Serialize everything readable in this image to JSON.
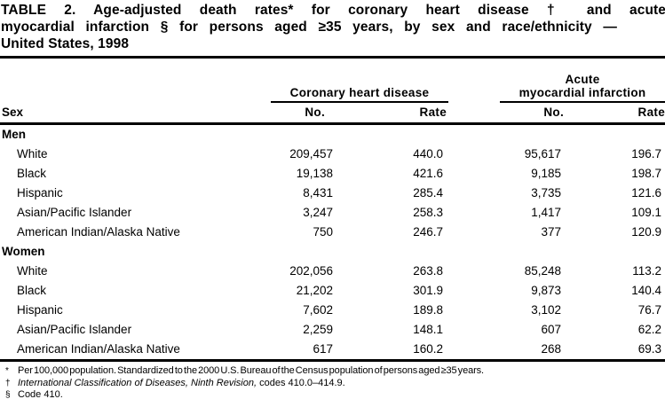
{
  "title": {
    "line1": "TABLE 2. Age-adjusted death rates* for coronary heart disease † and acute",
    "line2": "myocardial infarction § for persons aged ≥35 years, by sex and race/ethnicity —",
    "line3": "United States, 1998"
  },
  "table": {
    "sex_header": "Sex",
    "group_chd": "Coronary heart disease",
    "group_ami_line1": "Acute",
    "group_ami_line2": "myocardial infarction",
    "col_no": "No.",
    "col_rate": "Rate",
    "sections": [
      {
        "label": "Men",
        "rows": [
          {
            "label": "White",
            "chd_no": "209,457",
            "chd_rate": "440.0",
            "ami_no": "95,617",
            "ami_rate": "196.7"
          },
          {
            "label": "Black",
            "chd_no": "19,138",
            "chd_rate": "421.6",
            "ami_no": "9,185",
            "ami_rate": "198.7"
          },
          {
            "label": "Hispanic",
            "chd_no": "8,431",
            "chd_rate": "285.4",
            "ami_no": "3,735",
            "ami_rate": "121.6"
          },
          {
            "label": "Asian/Pacific Islander",
            "chd_no": "3,247",
            "chd_rate": "258.3",
            "ami_no": "1,417",
            "ami_rate": "109.1"
          },
          {
            "label": "American Indian/Alaska Native",
            "chd_no": "750",
            "chd_rate": "246.7",
            "ami_no": "377",
            "ami_rate": "120.9"
          }
        ]
      },
      {
        "label": "Women",
        "rows": [
          {
            "label": "White",
            "chd_no": "202,056",
            "chd_rate": "263.8",
            "ami_no": "85,248",
            "ami_rate": "113.2"
          },
          {
            "label": "Black",
            "chd_no": "21,202",
            "chd_rate": "301.9",
            "ami_no": "9,873",
            "ami_rate": "140.4"
          },
          {
            "label": "Hispanic",
            "chd_no": "7,602",
            "chd_rate": "189.8",
            "ami_no": "3,102",
            "ami_rate": "76.7"
          },
          {
            "label": "Asian/Pacific Islander",
            "chd_no": "2,259",
            "chd_rate": "148.1",
            "ami_no": "607",
            "ami_rate": "62.2"
          },
          {
            "label": "American Indian/Alaska Native",
            "chd_no": "617",
            "chd_rate": "160.2",
            "ami_no": "268",
            "ami_rate": "69.3"
          }
        ]
      }
    ]
  },
  "footnotes": [
    {
      "symbol": "*",
      "text": "Per 100,000 population. Standardized to the 2000 U.S. Bureau of the Census population of persons aged ≥35 years."
    },
    {
      "symbol": "†",
      "italic": "International Classification of Diseases, Ninth Revision,",
      "text": " codes 410.0–414.9."
    },
    {
      "symbol": "§",
      "text": "Code 410."
    }
  ]
}
